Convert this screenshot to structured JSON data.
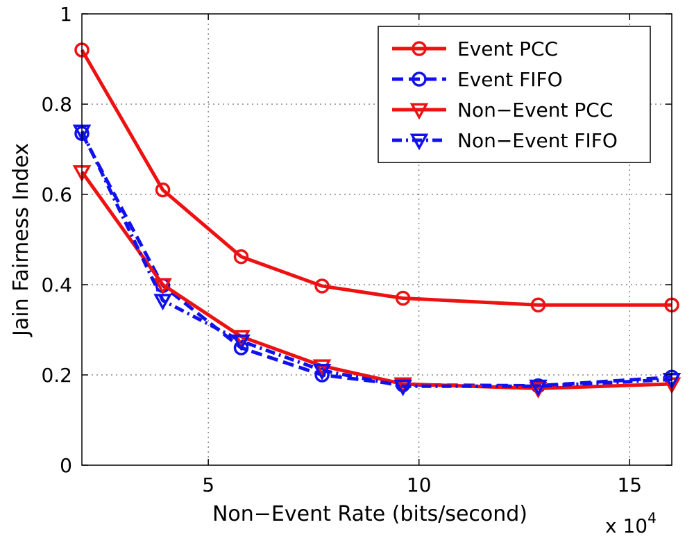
{
  "chart_data": {
    "type": "line",
    "title": "",
    "xlabel": "Non−Event Rate (bits/second)",
    "ylabel": "Jain Fairness Index",
    "x_multiplier_label": "x 10",
    "x_multiplier_exp": "4",
    "xlim": [
      2,
      16
    ],
    "ylim": [
      0,
      1
    ],
    "xticks": [
      5,
      10,
      15
    ],
    "yticks": [
      0,
      0.2,
      0.4,
      0.6,
      0.8,
      1
    ],
    "xtick_labels": [
      "5",
      "10",
      "15"
    ],
    "ytick_labels": [
      "0",
      "0.2",
      "0.4",
      "0.6",
      "0.8",
      "1"
    ],
    "grid": true,
    "legend_position": "top-right",
    "x": [
      2,
      3.92,
      5.78,
      7.7,
      9.62,
      12.83,
      16
    ],
    "series": [
      {
        "name": "Event PCC",
        "color": "#ee1111",
        "marker": "circle",
        "dash": "solid",
        "values": [
          0.92,
          0.61,
          0.462,
          0.397,
          0.37,
          0.355,
          0.355
        ]
      },
      {
        "name": "Event FIFO",
        "color": "#1111ee",
        "marker": "circle",
        "dash": "dashed",
        "values": [
          0.735,
          0.398,
          0.26,
          0.2,
          0.178,
          0.176,
          0.195
        ]
      },
      {
        "name": "Non−Event PCC",
        "color": "#ee1111",
        "marker": "triangle-down",
        "dash": "solid",
        "values": [
          0.65,
          0.4,
          0.285,
          0.22,
          0.18,
          0.17,
          0.18
        ]
      },
      {
        "name": "Non−Event FIFO",
        "color": "#1111ee",
        "marker": "triangle-down",
        "dash": "dashdot",
        "values": [
          0.74,
          0.365,
          0.275,
          0.21,
          0.175,
          0.175,
          0.19
        ]
      }
    ]
  }
}
